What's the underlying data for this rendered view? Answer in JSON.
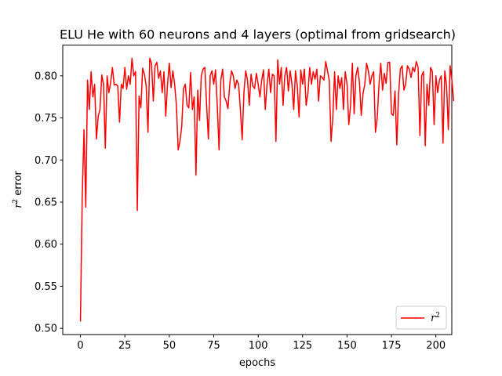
{
  "chart_data": {
    "type": "line",
    "title": "ELU He with 60 neurons and 4 layers (optimal from gridsearch)",
    "xlabel": "epochs",
    "ylabel_base": "r",
    "ylabel_sup": "2",
    "ylabel_suffix": " error",
    "xlim": [
      -9.95,
      208.95
    ],
    "ylim": [
      0.4925,
      0.8365
    ],
    "x_ticks": [
      0,
      25,
      50,
      75,
      100,
      125,
      150,
      175,
      200
    ],
    "y_ticks": [
      0.5,
      0.55,
      0.6,
      0.65,
      0.7,
      0.75,
      0.8
    ],
    "x_tick_labels": [
      "0",
      "25",
      "50",
      "75",
      "100",
      "125",
      "150",
      "175",
      "200"
    ],
    "y_tick_labels": [
      "0.50",
      "0.55",
      "0.60",
      "0.65",
      "0.70",
      "0.75",
      "0.80"
    ],
    "legend": {
      "placement": "lower-right",
      "label_base": "r",
      "label_sup": "2"
    },
    "grid": false,
    "series": [
      {
        "name": "r2",
        "color": "#ff0000",
        "values": [
          0.508,
          0.655,
          0.736,
          0.644,
          0.795,
          0.76,
          0.805,
          0.775,
          0.79,
          0.725,
          0.752,
          0.76,
          0.801,
          0.79,
          0.714,
          0.8,
          0.78,
          0.792,
          0.81,
          0.789,
          0.79,
          0.788,
          0.745,
          0.79,
          0.785,
          0.81,
          0.784,
          0.8,
          0.79,
          0.821,
          0.8,
          0.805,
          0.64,
          0.776,
          0.762,
          0.809,
          0.802,
          0.788,
          0.733,
          0.821,
          0.815,
          0.77,
          0.812,
          0.816,
          0.797,
          0.806,
          0.78,
          0.805,
          0.752,
          0.79,
          0.815,
          0.786,
          0.806,
          0.79,
          0.765,
          0.712,
          0.722,
          0.74,
          0.785,
          0.79,
          0.765,
          0.762,
          0.804,
          0.76,
          0.775,
          0.682,
          0.783,
          0.747,
          0.8,
          0.808,
          0.81,
          0.765,
          0.725,
          0.8,
          0.806,
          0.79,
          0.807,
          0.764,
          0.712,
          0.795,
          0.808,
          0.775,
          0.77,
          0.761,
          0.79,
          0.806,
          0.8,
          0.785,
          0.795,
          0.79,
          0.76,
          0.724,
          0.78,
          0.806,
          0.795,
          0.765,
          0.802,
          0.788,
          0.785,
          0.803,
          0.79,
          0.775,
          0.795,
          0.807,
          0.76,
          0.79,
          0.808,
          0.78,
          0.802,
          0.8,
          0.722,
          0.819,
          0.79,
          0.81,
          0.765,
          0.8,
          0.81,
          0.782,
          0.806,
          0.79,
          0.76,
          0.806,
          0.788,
          0.751,
          0.807,
          0.79,
          0.808,
          0.765,
          0.78,
          0.81,
          0.79,
          0.805,
          0.796,
          0.808,
          0.77,
          0.8,
          0.798,
          0.795,
          0.817,
          0.806,
          0.795,
          0.722,
          0.75,
          0.805,
          0.76,
          0.8,
          0.785,
          0.798,
          0.76,
          0.805,
          0.79,
          0.742,
          0.765,
          0.815,
          0.755,
          0.8,
          0.81,
          0.792,
          0.753,
          0.779,
          0.79,
          0.815,
          0.806,
          0.79,
          0.8,
          0.805,
          0.733,
          0.75,
          0.79,
          0.815,
          0.783,
          0.803,
          0.791,
          0.816,
          0.816,
          0.755,
          0.753,
          0.782,
          0.718,
          0.778,
          0.808,
          0.812,
          0.783,
          0.79,
          0.812,
          0.808,
          0.798,
          0.81,
          0.805,
          0.817,
          0.81,
          0.729,
          0.8,
          0.805,
          0.717,
          0.79,
          0.765,
          0.81,
          0.805,
          0.742,
          0.8,
          0.78,
          0.795,
          0.8,
          0.72,
          0.806,
          0.788,
          0.736,
          0.812,
          0.795,
          0.77
        ]
      }
    ]
  }
}
